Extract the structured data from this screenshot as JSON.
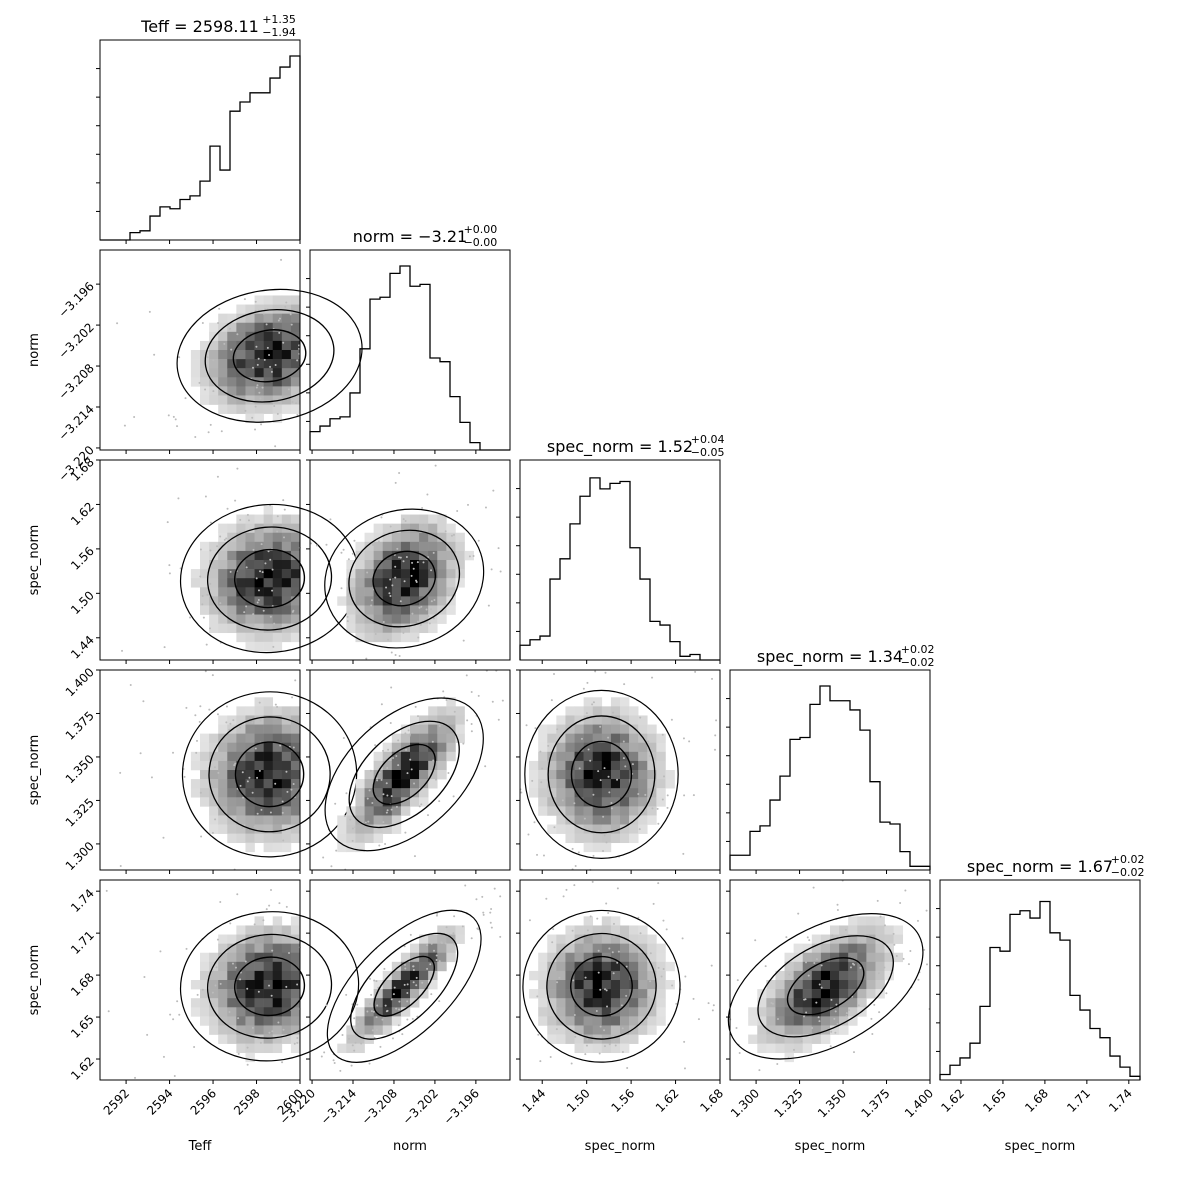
{
  "chart_data": {
    "type": "corner",
    "params": [
      {
        "label": "Teff",
        "title_base": "Teff = 2598.11",
        "title_sup": "+1.35",
        "title_sub": "−1.94",
        "range": [
          2590.8,
          2600.0
        ],
        "ticks": [
          2592,
          2594,
          2596,
          2598,
          2600
        ],
        "tick_labels": [
          "2592",
          "2594",
          "2596",
          "2598",
          "2600"
        ]
      },
      {
        "label": "norm",
        "title_base": "norm = −3.21",
        "title_sup": "+0.00",
        "title_sub": "−0.00",
        "range": [
          -3.2203,
          -3.191
        ],
        "ticks": [
          -3.22,
          -3.214,
          -3.208,
          -3.202,
          -3.196
        ],
        "tick_labels": [
          "−3.220",
          "−3.214",
          "−3.208",
          "−3.202",
          "−3.196"
        ]
      },
      {
        "label": "spec_norm",
        "title_base": "spec_norm = 1.52",
        "title_sup": "+0.04",
        "title_sub": "−0.05",
        "range": [
          1.41,
          1.68
        ],
        "ticks": [
          1.44,
          1.5,
          1.56,
          1.62,
          1.68
        ],
        "tick_labels": [
          "1.44",
          "1.50",
          "1.56",
          "1.62",
          "1.68"
        ]
      },
      {
        "label": "spec_norm",
        "title_base": "spec_norm = 1.34",
        "title_sup": "+0.02",
        "title_sub": "−0.02",
        "range": [
          1.285,
          1.4
        ],
        "ticks": [
          1.3,
          1.325,
          1.35,
          1.375,
          1.4
        ],
        "tick_labels": [
          "1.300",
          "1.325",
          "1.350",
          "1.375",
          "1.400"
        ]
      },
      {
        "label": "spec_norm",
        "title_base": "spec_norm = 1.67",
        "title_sup": "+0.02",
        "title_sub": "−0.02",
        "range": [
          1.605,
          1.748
        ],
        "ticks": [
          1.62,
          1.65,
          1.68,
          1.71,
          1.74
        ],
        "tick_labels": [
          "1.62",
          "1.65",
          "1.68",
          "1.71",
          "1.74"
        ]
      }
    ],
    "histograms": [
      [
        0.0,
        0.0,
        0.0,
        0.04,
        0.05,
        0.13,
        0.18,
        0.17,
        0.22,
        0.24,
        0.32,
        0.51,
        0.38,
        0.7,
        0.75,
        0.8,
        0.8,
        0.88,
        0.94,
        1.0
      ],
      [
        0.1,
        0.13,
        0.17,
        0.18,
        0.31,
        0.55,
        0.82,
        0.83,
        0.96,
        1.0,
        0.89,
        0.9,
        0.5,
        0.48,
        0.29,
        0.15,
        0.04,
        0.0,
        0.0,
        0.0
      ],
      [
        0.08,
        0.11,
        0.13,
        0.44,
        0.55,
        0.74,
        0.89,
        0.99,
        0.93,
        0.96,
        0.97,
        0.61,
        0.44,
        0.21,
        0.19,
        0.1,
        0.02,
        0.03,
        0.0,
        0.0
      ],
      [
        0.08,
        0.08,
        0.21,
        0.24,
        0.38,
        0.51,
        0.71,
        0.72,
        0.9,
        1.0,
        0.92,
        0.92,
        0.87,
        0.76,
        0.48,
        0.26,
        0.25,
        0.1,
        0.02,
        0.02
      ],
      [
        0.03,
        0.08,
        0.12,
        0.2,
        0.4,
        0.72,
        0.7,
        0.9,
        0.92,
        0.88,
        0.97,
        0.8,
        0.76,
        0.46,
        0.38,
        0.28,
        0.23,
        0.13,
        0.07,
        0.02
      ]
    ],
    "correlations": {
      "1,0": 0.2,
      "2,0": 0.1,
      "2,1": 0.3,
      "3,0": 0.05,
      "3,1": 0.78,
      "3,2": 0.0,
      "4,0": 0.1,
      "4,1": 0.9,
      "4,2": 0.05,
      "4,3": 0.6
    },
    "centers": [
      [
        2598.6
      ],
      [
        -3.2065
      ],
      [
        1.52
      ],
      [
        1.34
      ],
      [
        1.672
      ]
    ],
    "spreads": [
      1.7,
      0.0045,
      0.045,
      0.021,
      0.024
    ],
    "grid": false
  }
}
